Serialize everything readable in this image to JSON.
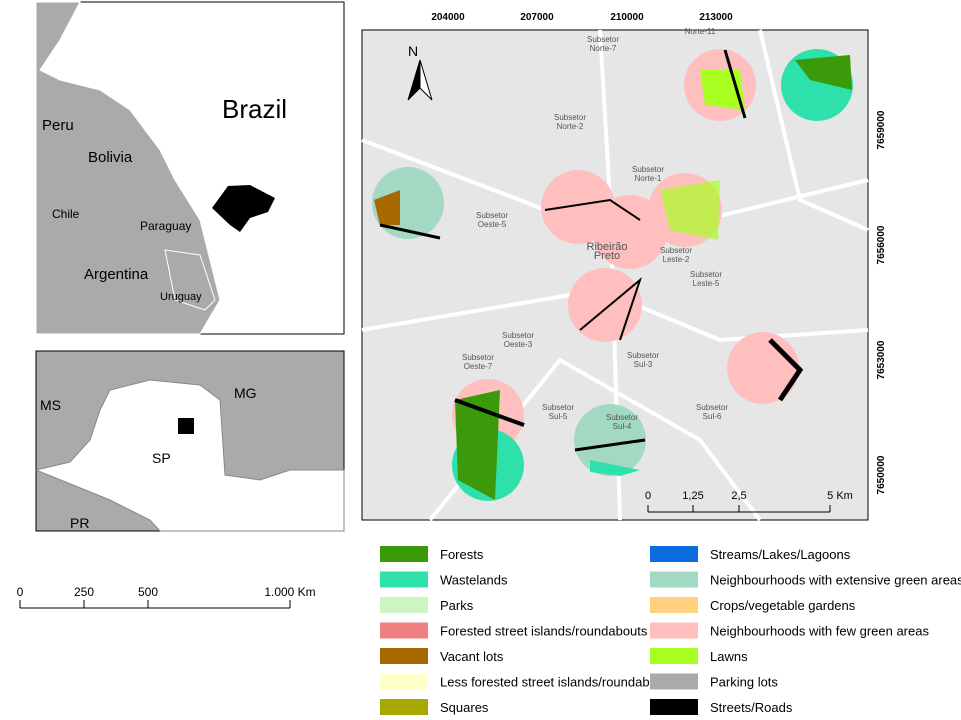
{
  "brazil_map": {
    "labels": [
      "Brazil",
      "Peru",
      "Bolivia",
      "Chile",
      "Paraguay",
      "Argentina",
      "Uruguay"
    ]
  },
  "state_map": {
    "labels": [
      "MS",
      "MG",
      "SP",
      "PR"
    ]
  },
  "world_scale": {
    "ticks": [
      "0",
      "250",
      "500",
      "1.000 Km"
    ]
  },
  "main_map": {
    "north": "N",
    "x_coords": [
      "204000",
      "207000",
      "210000",
      "213000"
    ],
    "y_coords": [
      "7659000",
      "7656000",
      "7653000",
      "7650000"
    ],
    "districts": [
      {
        "lines": [
          "Subsetor",
          "Norte-7"
        ]
      },
      {
        "lines": [
          "Norte-11"
        ]
      },
      {
        "lines": [
          "Subsetor",
          "Norte-2"
        ]
      },
      {
        "lines": [
          "Subsetor",
          "Norte-1"
        ]
      },
      {
        "lines": [
          "Subsetor",
          "Oeste-5"
        ]
      },
      {
        "lines": [
          "Ribeirão",
          "Preto"
        ]
      },
      {
        "lines": [
          "Subsetor",
          "Leste-2"
        ]
      },
      {
        "lines": [
          "Subsetor",
          "Leste-5"
        ]
      },
      {
        "lines": [
          "Subsetor",
          "Oeste-3"
        ]
      },
      {
        "lines": [
          "Subsetor",
          "Oeste-7"
        ]
      },
      {
        "lines": [
          "Subsetor",
          "Sul-3"
        ]
      },
      {
        "lines": [
          "Subsetor",
          "Sul-5"
        ]
      },
      {
        "lines": [
          "Subsetor",
          "Sul-4"
        ]
      },
      {
        "lines": [
          "Subsetor",
          "Sul-6"
        ]
      }
    ],
    "scale": {
      "ticks": [
        "0",
        "1,25",
        "2,5",
        "5 Km"
      ]
    }
  },
  "legend": {
    "items": [
      {
        "label": "Forests",
        "color": "#3a9a0a"
      },
      {
        "label": "Wastelands",
        "color": "#2ee0aa"
      },
      {
        "label": "Parks",
        "color": "#cdf5c2"
      },
      {
        "label": "Forested street islands/roundabouts",
        "color": "#f08080"
      },
      {
        "label": "Vacant lots",
        "color": "#a86a00"
      },
      {
        "label": "Less forested street islands/roundabouts",
        "color": "#ffffc8"
      },
      {
        "label": "Squares",
        "color": "#a8a800"
      },
      {
        "label": "Streams/Lakes/Lagoons",
        "color": "#0a6ce0"
      },
      {
        "label": "Neighbourhoods with extensive green areas",
        "color": "#a3d9c2"
      },
      {
        "label": "Crops/vegetable gardens",
        "color": "#ffd080"
      },
      {
        "label": "Neighbourhoods with few green areas",
        "color": "#ffbfbf"
      },
      {
        "label": "Lawns",
        "color": "#aaff22"
      },
      {
        "label": "Parking lots",
        "color": "#aaaaaa"
      },
      {
        "label": "Streets/Roads",
        "color": "#000000"
      }
    ]
  }
}
